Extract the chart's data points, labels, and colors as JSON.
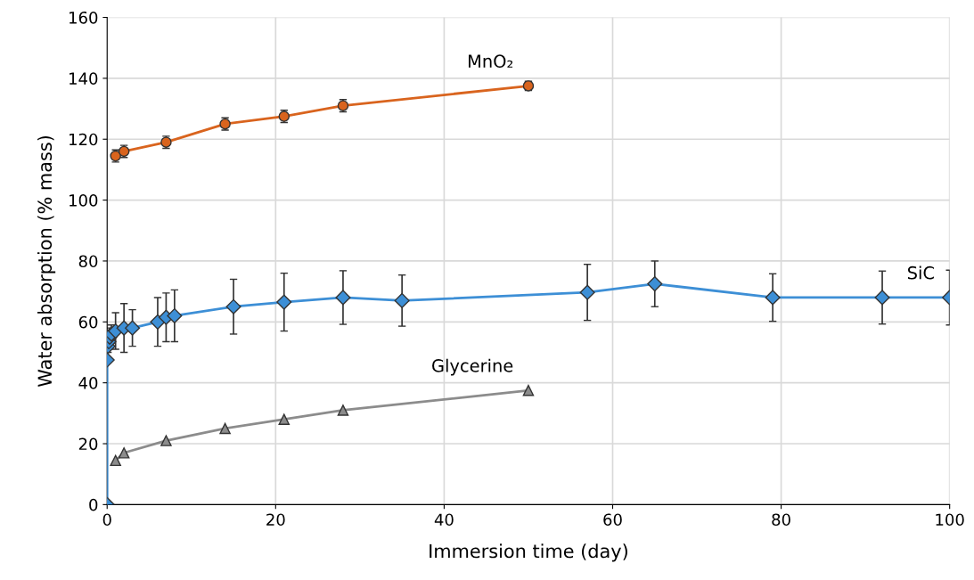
{
  "chart_data": {
    "type": "line",
    "xlabel": "Immersion time (day)",
    "ylabel": "Water absorption (% mass)",
    "xlim": [
      0,
      100
    ],
    "xticks": [
      0,
      20,
      40,
      60,
      80,
      100
    ],
    "ylim": [
      0,
      160
    ],
    "yticks": [
      0,
      20,
      40,
      60,
      80,
      100,
      120,
      140,
      160
    ],
    "grid": true,
    "legend": false,
    "series": [
      {
        "name": "MnO₂",
        "color": "#d9641e",
        "marker": "circle",
        "x": [
          1,
          2,
          7,
          14,
          21,
          28,
          50
        ],
        "values": [
          114.5,
          116,
          119,
          125,
          127.5,
          131,
          137.5
        ],
        "errors": [
          2,
          2,
          2,
          2,
          2,
          2,
          1.5
        ]
      },
      {
        "name": "SiC",
        "color": "#3d8fd6",
        "marker": "diamond",
        "x": [
          0,
          0,
          0.1,
          0.2,
          0.3,
          0.5,
          1,
          2,
          3,
          6,
          7,
          8,
          15,
          21,
          28,
          35,
          57,
          65,
          79,
          92,
          100
        ],
        "values": [
          0,
          47.5,
          52,
          53.5,
          55,
          56,
          57,
          58,
          58,
          60,
          61.5,
          62,
          65,
          66.5,
          68,
          67,
          69.7,
          72.5,
          68,
          68,
          68
        ],
        "errors": [
          null,
          null,
          2,
          2,
          3,
          3,
          6,
          8,
          6,
          8,
          8,
          8.5,
          9,
          9.5,
          8.8,
          8.4,
          9.2,
          7.5,
          7.8,
          8.7,
          9
        ]
      },
      {
        "name": "Glycerine",
        "color": "#8c8c8c",
        "marker": "triangle",
        "x": [
          1,
          2,
          7,
          14,
          21,
          28,
          50
        ],
        "values": [
          14.5,
          17,
          21,
          25,
          28,
          31,
          37.5
        ]
      }
    ]
  }
}
